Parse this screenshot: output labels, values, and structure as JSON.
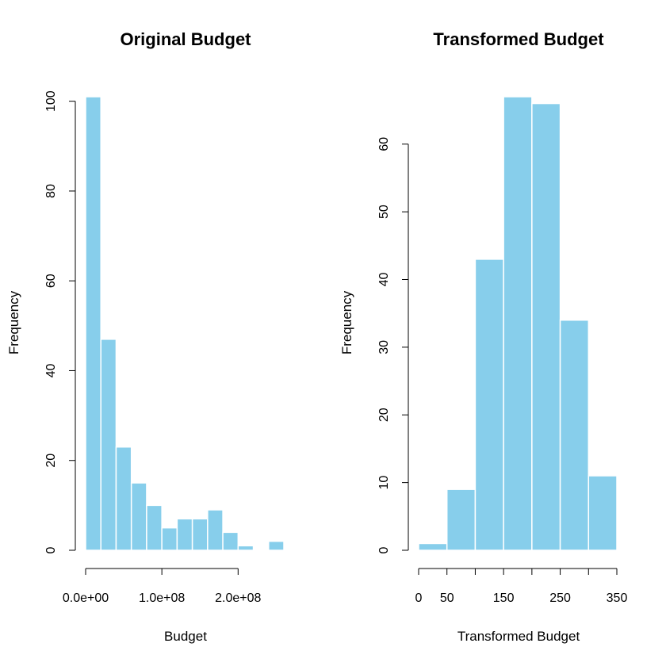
{
  "chart_data": [
    {
      "type": "bar",
      "title": "Original Budget",
      "xlabel": "Budget",
      "ylabel": "Frequency",
      "bar_color": "#87CEEB",
      "bin_edges": [
        0,
        20000000,
        40000000,
        60000000,
        80000000,
        100000000,
        120000000,
        140000000,
        160000000,
        180000000,
        200000000,
        220000000,
        240000000,
        260000000
      ],
      "values": [
        101,
        47,
        23,
        15,
        10,
        5,
        7,
        7,
        9,
        4,
        1,
        0,
        2
      ],
      "xlim": [
        0,
        260000000
      ],
      "ylim": [
        0,
        101
      ],
      "x_ticks": [
        0,
        100000000,
        200000000
      ],
      "x_tick_labels": [
        "0.0e+00",
        "1.0e+08",
        "2.0e+08"
      ],
      "y_ticks": [
        0,
        20,
        40,
        60,
        80,
        100
      ],
      "y_tick_labels": [
        "0",
        "20",
        "40",
        "60",
        "80",
        "100"
      ]
    },
    {
      "type": "bar",
      "title": "Transformed Budget",
      "xlabel": "Transformed Budget",
      "ylabel": "Frequency",
      "bar_color": "#87CEEB",
      "bin_edges": [
        0,
        50,
        100,
        150,
        200,
        250,
        300,
        350
      ],
      "values": [
        1,
        9,
        43,
        67,
        66,
        34,
        11
      ],
      "xlim": [
        0,
        350
      ],
      "ylim": [
        0,
        67
      ],
      "x_ticks": [
        0,
        50,
        100,
        150,
        200,
        250,
        300,
        350
      ],
      "x_tick_labels": [
        "0",
        "50",
        "",
        "150",
        "",
        "250",
        "",
        "350"
      ],
      "y_ticks": [
        0,
        10,
        20,
        30,
        40,
        50,
        60
      ],
      "y_tick_labels": [
        "0",
        "10",
        "20",
        "30",
        "40",
        "50",
        "60"
      ]
    }
  ]
}
